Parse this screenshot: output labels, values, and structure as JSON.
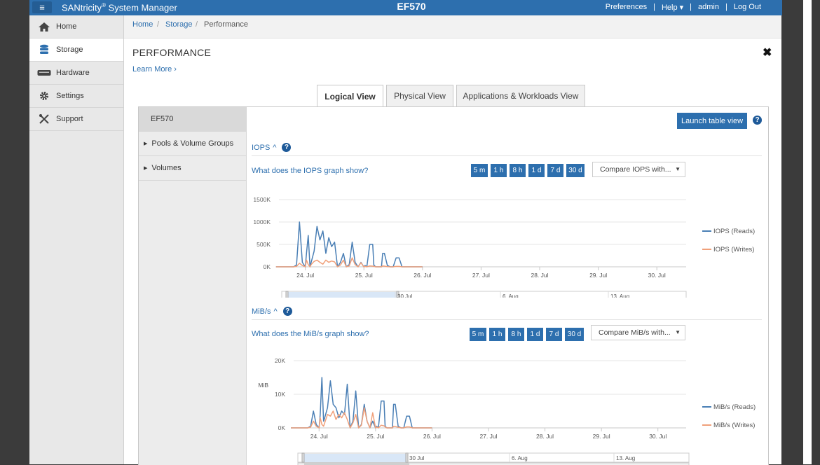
{
  "app": {
    "menu_icon": "hamburger-icon",
    "title_main": "SANtricity",
    "title_reg": "®",
    "title_rest": " System Manager",
    "system_name": "EF570"
  },
  "topnav": {
    "preferences": "Preferences",
    "sep1": "|",
    "help": "Help ▾",
    "sep2": "|",
    "user": "admin",
    "sep3": "|",
    "logout": "Log Out"
  },
  "sidebar": {
    "items": [
      {
        "label": "Home",
        "icon": "home-icon"
      },
      {
        "label": "Storage",
        "icon": "storage-icon"
      },
      {
        "label": "Hardware",
        "icon": "hardware-icon"
      },
      {
        "label": "Settings",
        "icon": "gear-icon"
      },
      {
        "label": "Support",
        "icon": "tools-icon"
      }
    ]
  },
  "breadcrumb": {
    "home": "Home",
    "sep": "/",
    "storage": "Storage",
    "current": "Performance"
  },
  "page": {
    "title": "PERFORMANCE",
    "learn_more": "Learn More ›",
    "close": "✖"
  },
  "tabs": [
    "Logical View",
    "Physical View",
    "Applications & Workloads View"
  ],
  "tree": {
    "root": "EF570",
    "items": [
      "Pools & Volume Groups",
      "Volumes"
    ],
    "expand_glyph": "▶"
  },
  "launch_button": "Launch table view",
  "help_glyph": "?",
  "ranges": [
    "5 m",
    "1 h",
    "8 h",
    "1 d",
    "7 d",
    "30 d"
  ],
  "charts": {
    "iops": {
      "heading": "IOPS",
      "toggle": "^",
      "question": "What does the IOPS graph show?",
      "compare": "Compare IOPS with..."
    },
    "mibs": {
      "heading": "MiB/s",
      "toggle": "^",
      "question": "What does the MiB/s graph show?",
      "compare": "Compare MiB/s with...",
      "ylabel": "MiB"
    }
  },
  "navigator": {
    "ticks": [
      "30 Jul",
      "6. Aug",
      "13. Aug"
    ],
    "grip": "III",
    "left_arrow": "◂",
    "right_arrow": "▸"
  },
  "colors": {
    "accent": "#2d6fae",
    "reads": "#4a7fb5",
    "writes": "#f0a07a"
  },
  "chart_data": [
    {
      "type": "line",
      "title": "IOPS",
      "ylim": [
        0,
        1500000
      ],
      "y_ticks": [
        "0K",
        "500K",
        "1000K",
        "1500K"
      ],
      "x_ticks": [
        "24. Jul",
        "25. Jul",
        "26. Jul",
        "27. Jul",
        "28. Jul",
        "29. Jul",
        "30. Jul"
      ],
      "x": [
        23.5,
        23.7,
        23.8,
        23.85,
        23.9,
        23.95,
        24.0,
        24.02,
        24.05,
        24.08,
        24.1,
        24.15,
        24.2,
        24.25,
        24.3,
        24.35,
        24.4,
        24.45,
        24.5,
        24.55,
        24.6,
        24.65,
        24.7,
        24.75,
        24.8,
        24.85,
        24.9,
        24.95,
        25.0,
        25.02,
        25.05,
        25.1,
        25.15,
        25.17,
        25.2,
        25.25,
        25.3,
        25.32,
        25.35,
        25.4,
        25.45,
        25.48,
        25.5,
        25.55,
        25.6,
        25.65,
        25.7,
        25.75,
        25.8,
        25.85,
        25.9,
        26.0
      ],
      "series": [
        {
          "name": "IOPS (Reads)",
          "values": [
            0,
            0,
            0,
            40000,
            1000000,
            100000,
            0,
            300000,
            700000,
            0,
            100000,
            350000,
            900000,
            600000,
            800000,
            300000,
            650000,
            450000,
            550000,
            0,
            100000,
            300000,
            0,
            50000,
            550000,
            100000,
            0,
            100000,
            0,
            30000,
            0,
            500000,
            500000,
            40000,
            0,
            0,
            0,
            300000,
            300000,
            30000,
            0,
            0,
            0,
            200000,
            200000,
            0,
            0,
            0,
            0,
            0,
            0,
            0
          ]
        },
        {
          "name": "IOPS (Writes)",
          "values": [
            0,
            0,
            0,
            10000,
            80000,
            30000,
            0,
            150000,
            50000,
            0,
            50000,
            120000,
            150000,
            100000,
            60000,
            150000,
            100000,
            130000,
            110000,
            0,
            40000,
            150000,
            0,
            20000,
            200000,
            50000,
            0,
            90000,
            0,
            10000,
            0,
            20000,
            15000,
            10000,
            0,
            0,
            0,
            20000,
            15000,
            5000,
            0,
            0,
            0,
            10000,
            10000,
            0,
            0,
            0,
            0,
            0,
            0,
            0
          ]
        }
      ]
    },
    {
      "type": "line",
      "title": "MiB/s",
      "ylabel": "MiB",
      "ylim": [
        0,
        20000
      ],
      "y_ticks": [
        "0K",
        "10K",
        "20K"
      ],
      "x_ticks": [
        "24. Jul",
        "25. Jul",
        "26. Jul",
        "27. Jul",
        "28. Jul",
        "29. Jul",
        "30. Jul"
      ],
      "x": [
        23.5,
        23.7,
        23.8,
        23.85,
        23.9,
        23.95,
        24.0,
        24.02,
        24.05,
        24.08,
        24.1,
        24.15,
        24.2,
        24.25,
        24.3,
        24.35,
        24.4,
        24.45,
        24.5,
        24.55,
        24.6,
        24.65,
        24.7,
        24.75,
        24.8,
        24.85,
        24.9,
        24.95,
        25.0,
        25.02,
        25.05,
        25.1,
        25.15,
        25.17,
        25.2,
        25.25,
        25.3,
        25.32,
        25.35,
        25.4,
        25.45,
        25.48,
        25.5,
        25.55,
        25.6,
        25.65,
        25.7,
        25.75,
        25.8,
        25.85,
        25.9,
        26.0
      ],
      "series": [
        {
          "name": "MiB/s (Reads)",
          "values": [
            0,
            0,
            0,
            500,
            5000,
            1000,
            0,
            4000,
            15000,
            2000,
            3000,
            6000,
            14000,
            7000,
            6000,
            3000,
            5000,
            4000,
            13000,
            0,
            2000,
            11000,
            0,
            1000,
            7000,
            2000,
            0,
            2000,
            0,
            500,
            0,
            8000,
            8000,
            500,
            0,
            0,
            0,
            7000,
            7000,
            500,
            0,
            0,
            0,
            3500,
            3500,
            0,
            0,
            0,
            0,
            0,
            0,
            0
          ]
        },
        {
          "name": "MiB/s (Writes)",
          "values": [
            0,
            0,
            0,
            200,
            2000,
            500,
            0,
            3000,
            1000,
            500,
            1500,
            4000,
            3500,
            5000,
            2500,
            4000,
            3000,
            4500,
            2500,
            0,
            1500,
            4000,
            0,
            800,
            6000,
            2000,
            0,
            4500,
            0,
            300,
            0,
            800,
            600,
            300,
            0,
            0,
            0,
            500,
            400,
            200,
            0,
            0,
            0,
            300,
            300,
            0,
            0,
            0,
            0,
            0,
            0,
            0
          ]
        }
      ]
    }
  ]
}
